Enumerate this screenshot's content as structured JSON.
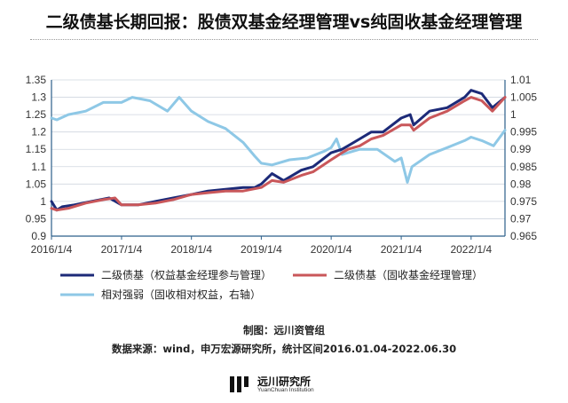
{
  "title": "二级债基长期回报：股债双基金经理管理vs纯固收基金经理管理",
  "caption_source_chart": "制图：远川资管组",
  "caption_source_data": "数据来源：wind，申万宏源研究所，统计区间2016.01.04-2022.06.30",
  "logo": {
    "name": "远川研究所",
    "subtitle": "YuanChuan Institution"
  },
  "colors": {
    "series1": "#1c2a78",
    "series2": "#c9575a",
    "series3": "#8ec8e6",
    "axis": "#2c5f8a",
    "grid": "#cfd6df"
  },
  "chart_data": {
    "type": "line",
    "x_ticks": [
      "2016/1/4",
      "2017/1/4",
      "2018/1/4",
      "2019/1/4",
      "2020/1/4",
      "2021/1/4",
      "2022/1/4"
    ],
    "x_range": [
      "2016/1/4",
      "2022/6/30"
    ],
    "y_left_ticks": [
      "0.9",
      "0.95",
      "1",
      "1.05",
      "1.1",
      "1.15",
      "1.2",
      "1.25",
      "1.3",
      "1.35"
    ],
    "y_left_range": [
      0.9,
      1.35
    ],
    "y_right_ticks": [
      "0.965",
      "0.97",
      "0.975",
      "0.98",
      "0.985",
      "0.99",
      "0.995",
      "1",
      "1.005",
      "1.01"
    ],
    "y_right_range": [
      0.965,
      1.01
    ],
    "grid": "horizontal",
    "legend_position": "bottom",
    "series": [
      {
        "name": "二级债基（权益基金经理参与管理）",
        "axis": "left",
        "points": [
          [
            "2016/1/4",
            1.0
          ],
          [
            "2016/2/1",
            0.975
          ],
          [
            "2016/3/1",
            0.985
          ],
          [
            "2016/5/1",
            0.99
          ],
          [
            "2016/8/1",
            1.0
          ],
          [
            "2016/11/1",
            1.01
          ],
          [
            "2017/1/4",
            0.99
          ],
          [
            "2017/4/1",
            0.99
          ],
          [
            "2017/7/1",
            1.0
          ],
          [
            "2017/10/1",
            1.01
          ],
          [
            "2018/1/4",
            1.02
          ],
          [
            "2018/4/1",
            1.03
          ],
          [
            "2018/7/1",
            1.035
          ],
          [
            "2018/10/1",
            1.04
          ],
          [
            "2018/12/1",
            1.04
          ],
          [
            "2019/1/4",
            1.05
          ],
          [
            "2019/3/1",
            1.08
          ],
          [
            "2019/5/1",
            1.06
          ],
          [
            "2019/8/1",
            1.09
          ],
          [
            "2019/10/1",
            1.1
          ],
          [
            "2020/1/4",
            1.14
          ],
          [
            "2020/3/1",
            1.15
          ],
          [
            "2020/4/1",
            1.16
          ],
          [
            "2020/6/1",
            1.18
          ],
          [
            "2020/8/1",
            1.2
          ],
          [
            "2020/10/1",
            1.2
          ],
          [
            "2021/1/4",
            1.24
          ],
          [
            "2021/2/20",
            1.25
          ],
          [
            "2021/3/10",
            1.22
          ],
          [
            "2021/6/1",
            1.26
          ],
          [
            "2021/9/1",
            1.27
          ],
          [
            "2021/12/1",
            1.3
          ],
          [
            "2022/1/4",
            1.32
          ],
          [
            "2022/3/1",
            1.31
          ],
          [
            "2022/4/25",
            1.27
          ],
          [
            "2022/6/30",
            1.3
          ]
        ]
      },
      {
        "name": "二级债基（固收基金经理管理）",
        "axis": "left",
        "points": [
          [
            "2016/1/4",
            0.98
          ],
          [
            "2016/2/1",
            0.975
          ],
          [
            "2016/4/1",
            0.98
          ],
          [
            "2016/7/1",
            0.995
          ],
          [
            "2016/10/1",
            1.005
          ],
          [
            "2016/12/1",
            1.01
          ],
          [
            "2017/1/4",
            0.99
          ],
          [
            "2017/4/1",
            0.99
          ],
          [
            "2017/7/1",
            0.995
          ],
          [
            "2017/10/1",
            1.005
          ],
          [
            "2018/1/4",
            1.02
          ],
          [
            "2018/4/1",
            1.025
          ],
          [
            "2018/7/1",
            1.03
          ],
          [
            "2018/10/1",
            1.03
          ],
          [
            "2019/1/4",
            1.04
          ],
          [
            "2019/3/1",
            1.06
          ],
          [
            "2019/5/1",
            1.055
          ],
          [
            "2019/8/1",
            1.075
          ],
          [
            "2019/10/1",
            1.085
          ],
          [
            "2020/1/4",
            1.12
          ],
          [
            "2020/3/1",
            1.14
          ],
          [
            "2020/4/1",
            1.15
          ],
          [
            "2020/6/1",
            1.16
          ],
          [
            "2020/8/1",
            1.18
          ],
          [
            "2020/10/1",
            1.19
          ],
          [
            "2021/1/4",
            1.22
          ],
          [
            "2021/2/20",
            1.22
          ],
          [
            "2021/3/10",
            1.205
          ],
          [
            "2021/6/1",
            1.24
          ],
          [
            "2021/9/1",
            1.26
          ],
          [
            "2021/12/1",
            1.29
          ],
          [
            "2022/1/4",
            1.3
          ],
          [
            "2022/3/1",
            1.29
          ],
          [
            "2022/4/25",
            1.26
          ],
          [
            "2022/6/30",
            1.3
          ]
        ]
      },
      {
        "name": "相对强弱（固收相对权益，右轴）",
        "axis": "right",
        "points": [
          [
            "2016/1/4",
            0.999
          ],
          [
            "2016/2/1",
            0.9985
          ],
          [
            "2016/4/1",
            1.0
          ],
          [
            "2016/7/1",
            1.001
          ],
          [
            "2016/10/1",
            1.0035
          ],
          [
            "2017/1/4",
            1.0035
          ],
          [
            "2017/3/1",
            1.005
          ],
          [
            "2017/6/1",
            1.004
          ],
          [
            "2017/9/1",
            1.001
          ],
          [
            "2017/11/1",
            1.005
          ],
          [
            "2018/1/4",
            1.001
          ],
          [
            "2018/4/1",
            0.998
          ],
          [
            "2018/7/1",
            0.996
          ],
          [
            "2018/10/1",
            0.992
          ],
          [
            "2018/12/1",
            0.988
          ],
          [
            "2019/1/4",
            0.986
          ],
          [
            "2019/3/1",
            0.9855
          ],
          [
            "2019/6/1",
            0.987
          ],
          [
            "2019/9/1",
            0.9875
          ],
          [
            "2019/12/1",
            0.9895
          ],
          [
            "2020/1/4",
            0.9905
          ],
          [
            "2020/2/1",
            0.993
          ],
          [
            "2020/3/1",
            0.9885
          ],
          [
            "2020/6/1",
            0.99
          ],
          [
            "2020/9/1",
            0.99
          ],
          [
            "2020/12/1",
            0.9865
          ],
          [
            "2021/1/4",
            0.9875
          ],
          [
            "2021/2/5",
            0.9805
          ],
          [
            "2021/3/1",
            0.985
          ],
          [
            "2021/6/1",
            0.9885
          ],
          [
            "2021/9/1",
            0.9905
          ],
          [
            "2021/12/1",
            0.9925
          ],
          [
            "2022/1/4",
            0.9935
          ],
          [
            "2022/3/1",
            0.9925
          ],
          [
            "2022/5/1",
            0.991
          ],
          [
            "2022/6/30",
            0.9955
          ]
        ]
      }
    ]
  }
}
